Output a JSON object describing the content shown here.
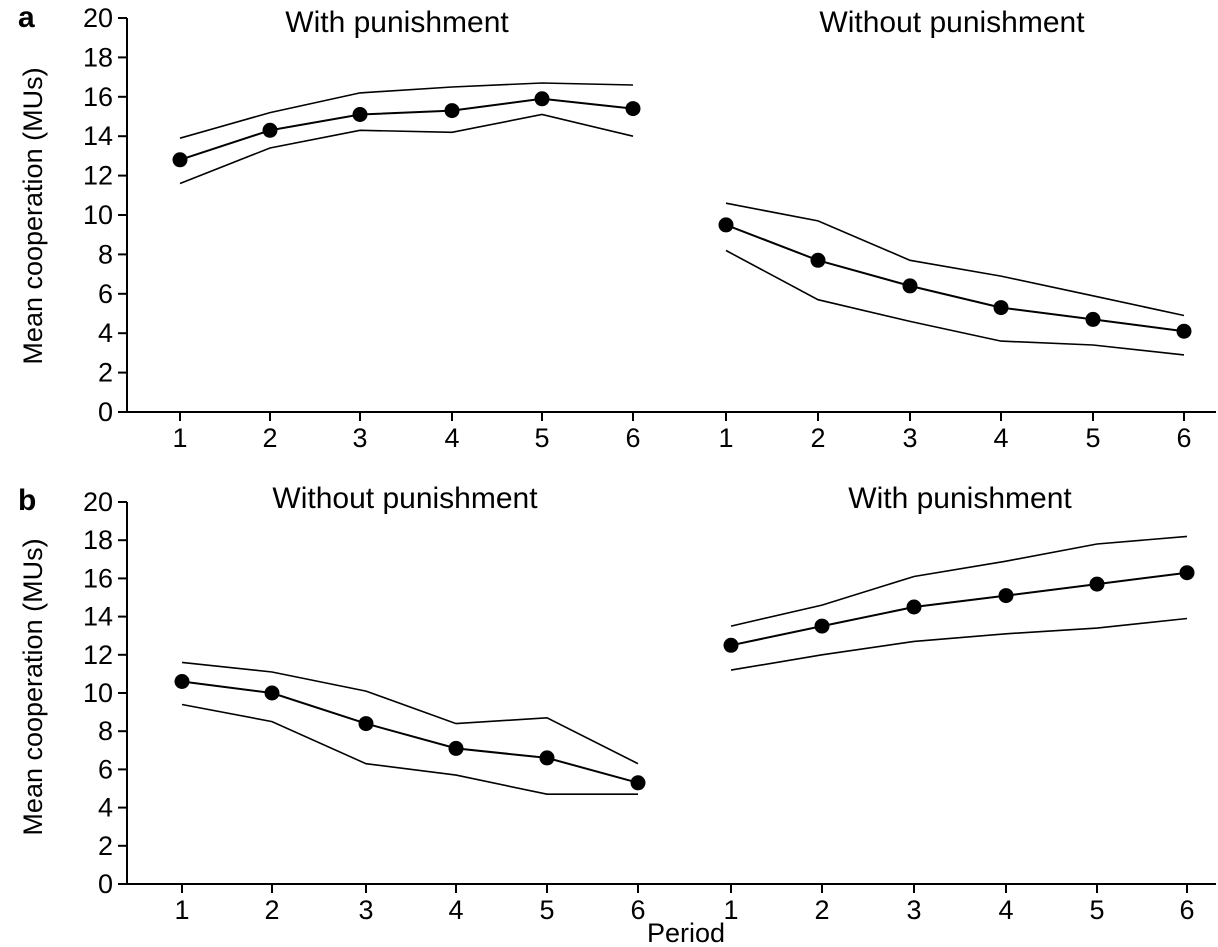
{
  "chart_data": [
    {
      "type": "line",
      "panel": "a",
      "ylabel": "Mean cooperation (MUs)",
      "xlabel": "",
      "ylim": [
        0,
        20
      ],
      "yticks": [
        0,
        2,
        4,
        6,
        8,
        10,
        12,
        14,
        16,
        18,
        20
      ],
      "x": [
        1,
        2,
        3,
        4,
        5,
        6,
        1,
        2,
        3,
        4,
        5,
        6
      ],
      "segments": [
        {
          "title": "With punishment",
          "x": [
            1,
            2,
            3,
            4,
            5,
            6
          ],
          "mean": [
            12.8,
            14.3,
            15.1,
            15.3,
            15.9,
            15.4
          ],
          "upper": [
            13.9,
            15.2,
            16.2,
            16.5,
            16.7,
            16.6
          ],
          "lower": [
            11.6,
            13.4,
            14.3,
            14.2,
            15.1,
            14.0
          ]
        },
        {
          "title": "Without punishment",
          "x": [
            1,
            2,
            3,
            4,
            5,
            6
          ],
          "mean": [
            9.5,
            7.7,
            6.4,
            5.3,
            4.7,
            4.1
          ],
          "upper": [
            10.6,
            9.7,
            7.7,
            6.9,
            5.9,
            4.9
          ],
          "lower": [
            8.2,
            5.7,
            4.6,
            3.6,
            3.4,
            2.9
          ]
        }
      ]
    },
    {
      "type": "line",
      "panel": "b",
      "ylabel": "Mean cooperation (MUs)",
      "xlabel": "Period",
      "ylim": [
        0,
        20
      ],
      "yticks": [
        0,
        2,
        4,
        6,
        8,
        10,
        12,
        14,
        16,
        18,
        20
      ],
      "x": [
        1,
        2,
        3,
        4,
        5,
        6,
        1,
        2,
        3,
        4,
        5,
        6
      ],
      "segments": [
        {
          "title": "Without punishment",
          "x": [
            1,
            2,
            3,
            4,
            5,
            6
          ],
          "mean": [
            10.6,
            10.0,
            8.4,
            7.1,
            6.6,
            5.3
          ],
          "upper": [
            11.6,
            11.1,
            10.1,
            8.4,
            8.7,
            6.3
          ],
          "lower": [
            9.4,
            8.5,
            6.3,
            5.7,
            4.7,
            4.7
          ]
        },
        {
          "title": "With punishment",
          "x": [
            1,
            2,
            3,
            4,
            5,
            6
          ],
          "mean": [
            12.5,
            13.5,
            14.5,
            15.1,
            15.7,
            16.3
          ],
          "upper": [
            13.5,
            14.6,
            16.1,
            16.9,
            17.8,
            18.2
          ],
          "lower": [
            11.2,
            12.0,
            12.7,
            13.1,
            13.4,
            13.9
          ]
        }
      ]
    }
  ]
}
